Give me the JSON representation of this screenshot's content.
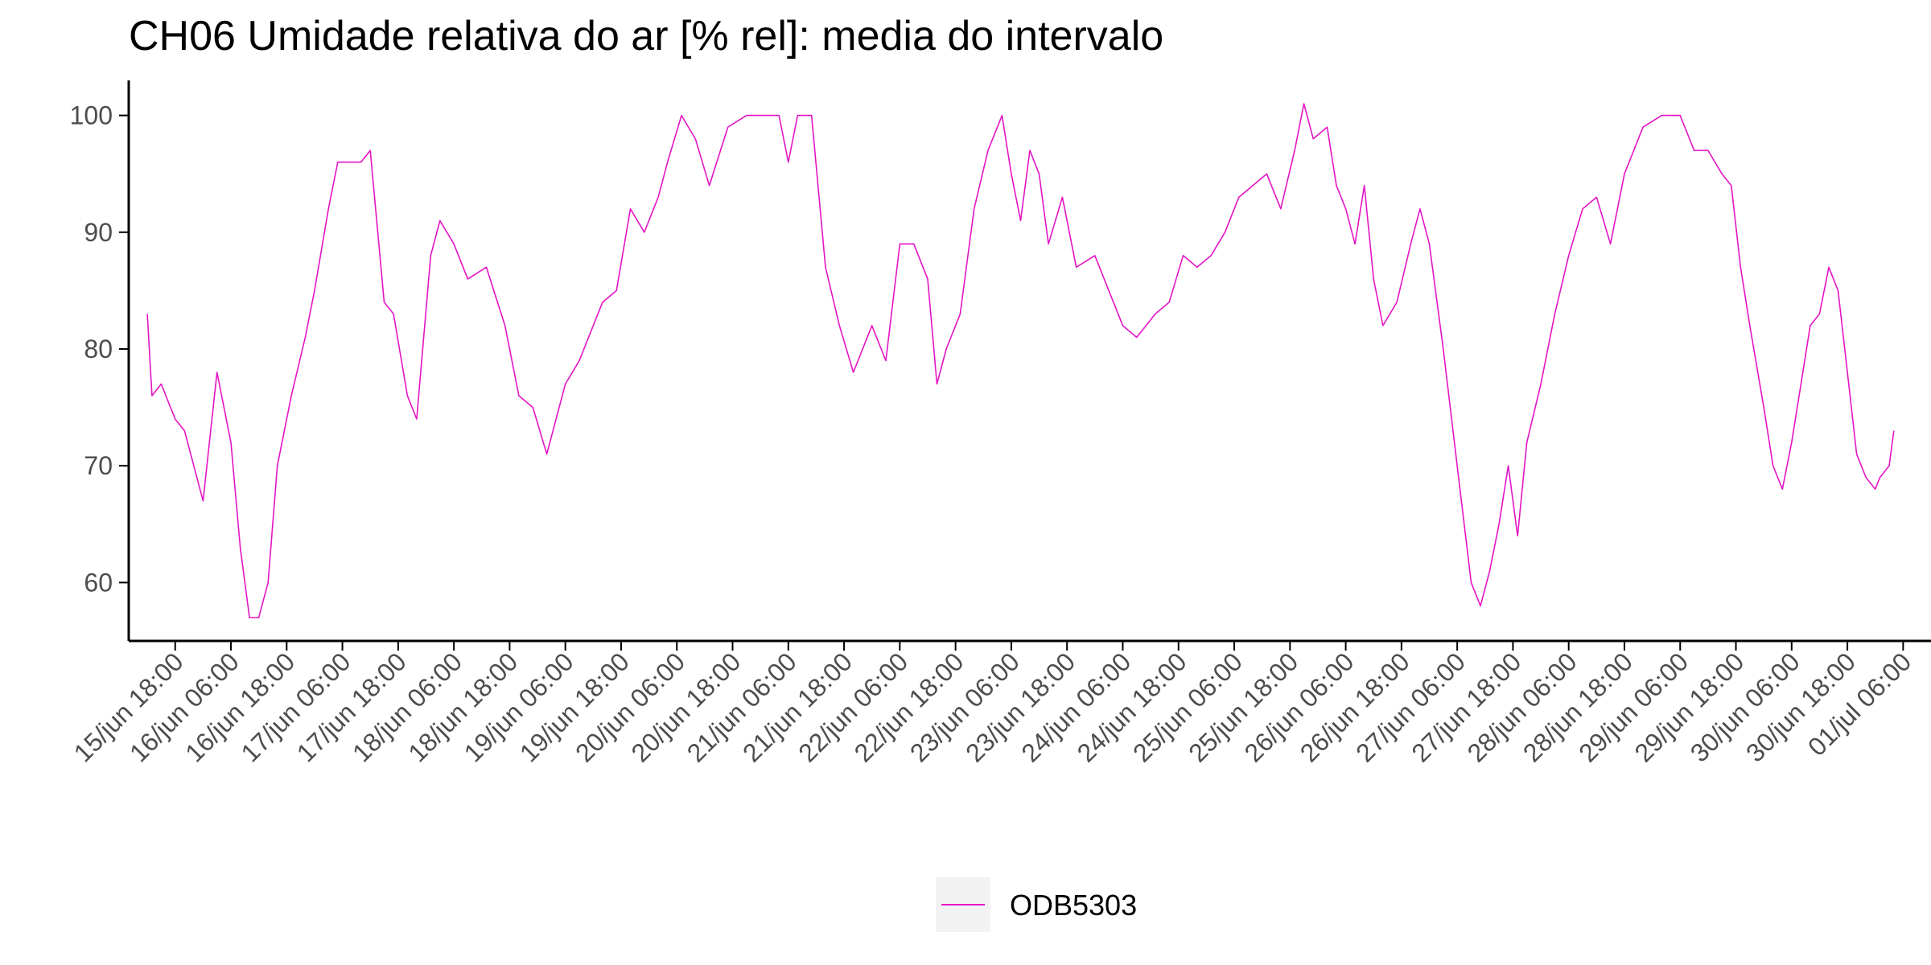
{
  "colors": {
    "series": "#e415c5",
    "axis": "#000000",
    "tick_text": "#4d4d4d",
    "legend_key_bg": "#f2f2f2"
  },
  "chart_data": {
    "type": "line",
    "title": "CH06 Umidade relativa do ar [% rel]: media do intervalo",
    "xlabel": "",
    "ylabel": "",
    "ylim": [
      55,
      103
    ],
    "xlim": [
      "2024-06-15T08:00",
      "2024-07-01T12:00"
    ],
    "x_tick_format": "dd/mmm HH:MM",
    "y_ticks": [
      60,
      70,
      80,
      90,
      100
    ],
    "x_tick_labels": [
      "15/jun 18:00",
      "16/jun 06:00",
      "16/jun 18:00",
      "17/jun 06:00",
      "17/jun 18:00",
      "18/jun 06:00",
      "18/jun 18:00",
      "19/jun 06:00",
      "19/jun 18:00",
      "20/jun 06:00",
      "20/jun 18:00",
      "21/jun 06:00",
      "21/jun 18:00",
      "22/jun 06:00",
      "22/jun 18:00",
      "23/jun 06:00",
      "23/jun 18:00",
      "24/jun 06:00",
      "24/jun 18:00",
      "25/jun 06:00",
      "25/jun 18:00",
      "26/jun 06:00",
      "26/jun 18:00",
      "27/jun 06:00",
      "27/jun 18:00",
      "28/jun 06:00",
      "28/jun 18:00",
      "29/jun 06:00",
      "29/jun 18:00",
      "30/jun 06:00",
      "30/jun 18:00",
      "01/jul 06:00"
    ],
    "legend": {
      "position": "bottom",
      "entries": [
        "ODB5303"
      ]
    },
    "grid": false,
    "series": [
      {
        "name": "ODB5303",
        "points": [
          [
            "2024-06-15T12:00",
            83
          ],
          [
            "2024-06-15T13:00",
            76
          ],
          [
            "2024-06-15T15:00",
            77
          ],
          [
            "2024-06-15T18:00",
            74
          ],
          [
            "2024-06-15T20:00",
            73
          ],
          [
            "2024-06-16T00:00",
            67
          ],
          [
            "2024-06-16T03:00",
            78
          ],
          [
            "2024-06-16T06:00",
            72
          ],
          [
            "2024-06-16T08:00",
            63
          ],
          [
            "2024-06-16T10:00",
            57
          ],
          [
            "2024-06-16T12:00",
            57
          ],
          [
            "2024-06-16T14:00",
            60
          ],
          [
            "2024-06-16T16:00",
            70
          ],
          [
            "2024-06-16T19:00",
            76
          ],
          [
            "2024-06-16T22:00",
            81
          ],
          [
            "2024-06-17T00:00",
            85
          ],
          [
            "2024-06-17T03:00",
            92
          ],
          [
            "2024-06-17T05:00",
            96
          ],
          [
            "2024-06-17T07:00",
            96
          ],
          [
            "2024-06-17T10:00",
            96
          ],
          [
            "2024-06-17T12:00",
            97
          ],
          [
            "2024-06-17T15:00",
            84
          ],
          [
            "2024-06-17T17:00",
            83
          ],
          [
            "2024-06-17T20:00",
            76
          ],
          [
            "2024-06-17T22:00",
            74
          ],
          [
            "2024-06-18T01:00",
            88
          ],
          [
            "2024-06-18T03:00",
            91
          ],
          [
            "2024-06-18T06:00",
            89
          ],
          [
            "2024-06-18T09:00",
            86
          ],
          [
            "2024-06-18T13:00",
            87
          ],
          [
            "2024-06-18T17:00",
            82
          ],
          [
            "2024-06-18T20:00",
            76
          ],
          [
            "2024-06-18T23:00",
            75
          ],
          [
            "2024-06-19T02:00",
            71
          ],
          [
            "2024-06-19T06:00",
            77
          ],
          [
            "2024-06-19T09:00",
            79
          ],
          [
            "2024-06-19T12:00",
            82
          ],
          [
            "2024-06-19T14:00",
            84
          ],
          [
            "2024-06-19T17:00",
            85
          ],
          [
            "2024-06-19T20:00",
            92
          ],
          [
            "2024-06-19T23:00",
            90
          ],
          [
            "2024-06-20T02:00",
            93
          ],
          [
            "2024-06-20T04:00",
            96
          ],
          [
            "2024-06-20T07:00",
            100
          ],
          [
            "2024-06-20T10:00",
            98
          ],
          [
            "2024-06-20T13:00",
            94
          ],
          [
            "2024-06-20T17:00",
            99
          ],
          [
            "2024-06-20T21:00",
            100
          ],
          [
            "2024-06-21T02:00",
            100
          ],
          [
            "2024-06-21T04:00",
            100
          ],
          [
            "2024-06-21T06:00",
            96
          ],
          [
            "2024-06-21T08:00",
            100
          ],
          [
            "2024-06-21T11:00",
            100
          ],
          [
            "2024-06-21T14:00",
            87
          ],
          [
            "2024-06-21T17:00",
            82
          ],
          [
            "2024-06-21T20:00",
            78
          ],
          [
            "2024-06-22T00:00",
            82
          ],
          [
            "2024-06-22T03:00",
            79
          ],
          [
            "2024-06-22T06:00",
            89
          ],
          [
            "2024-06-22T09:00",
            89
          ],
          [
            "2024-06-22T12:00",
            86
          ],
          [
            "2024-06-22T14:00",
            77
          ],
          [
            "2024-06-22T16:00",
            80
          ],
          [
            "2024-06-22T19:00",
            83
          ],
          [
            "2024-06-22T22:00",
            92
          ],
          [
            "2024-06-23T01:00",
            97
          ],
          [
            "2024-06-23T04:00",
            100
          ],
          [
            "2024-06-23T06:00",
            95
          ],
          [
            "2024-06-23T08:00",
            91
          ],
          [
            "2024-06-23T10:00",
            97
          ],
          [
            "2024-06-23T12:00",
            95
          ],
          [
            "2024-06-23T14:00",
            89
          ],
          [
            "2024-06-23T17:00",
            93
          ],
          [
            "2024-06-23T20:00",
            87
          ],
          [
            "2024-06-24T00:00",
            88
          ],
          [
            "2024-06-24T03:00",
            85
          ],
          [
            "2024-06-24T06:00",
            82
          ],
          [
            "2024-06-24T09:00",
            81
          ],
          [
            "2024-06-24T13:00",
            83
          ],
          [
            "2024-06-24T16:00",
            84
          ],
          [
            "2024-06-24T19:00",
            88
          ],
          [
            "2024-06-24T22:00",
            87
          ],
          [
            "2024-06-25T01:00",
            88
          ],
          [
            "2024-06-25T04:00",
            90
          ],
          [
            "2024-06-25T07:00",
            93
          ],
          [
            "2024-06-25T10:00",
            94
          ],
          [
            "2024-06-25T13:00",
            95
          ],
          [
            "2024-06-25T16:00",
            92
          ],
          [
            "2024-06-25T19:00",
            97
          ],
          [
            "2024-06-25T21:00",
            101
          ],
          [
            "2024-06-25T23:00",
            98
          ],
          [
            "2024-06-26T02:00",
            99
          ],
          [
            "2024-06-26T04:00",
            94
          ],
          [
            "2024-06-26T06:00",
            92
          ],
          [
            "2024-06-26T08:00",
            89
          ],
          [
            "2024-06-26T10:00",
            94
          ],
          [
            "2024-06-26T12:00",
            86
          ],
          [
            "2024-06-26T14:00",
            82
          ],
          [
            "2024-06-26T17:00",
            84
          ],
          [
            "2024-06-26T20:00",
            89
          ],
          [
            "2024-06-26T22:00",
            92
          ],
          [
            "2024-06-27T00:00",
            89
          ],
          [
            "2024-06-27T03:00",
            80
          ],
          [
            "2024-06-27T06:00",
            70
          ],
          [
            "2024-06-27T09:00",
            60
          ],
          [
            "2024-06-27T11:00",
            58
          ],
          [
            "2024-06-27T13:00",
            61
          ],
          [
            "2024-06-27T15:00",
            65
          ],
          [
            "2024-06-27T17:00",
            70
          ],
          [
            "2024-06-27T19:00",
            64
          ],
          [
            "2024-06-27T21:00",
            72
          ],
          [
            "2024-06-28T00:00",
            77
          ],
          [
            "2024-06-28T03:00",
            83
          ],
          [
            "2024-06-28T06:00",
            88
          ],
          [
            "2024-06-28T09:00",
            92
          ],
          [
            "2024-06-28T12:00",
            93
          ],
          [
            "2024-06-28T15:00",
            89
          ],
          [
            "2024-06-28T18:00",
            95
          ],
          [
            "2024-06-28T22:00",
            99
          ],
          [
            "2024-06-29T02:00",
            100
          ],
          [
            "2024-06-29T06:00",
            100
          ],
          [
            "2024-06-29T09:00",
            97
          ],
          [
            "2024-06-29T12:00",
            97
          ],
          [
            "2024-06-29T15:00",
            95
          ],
          [
            "2024-06-29T17:00",
            94
          ],
          [
            "2024-06-29T19:00",
            87
          ],
          [
            "2024-06-29T21:00",
            82
          ],
          [
            "2024-06-30T00:00",
            75
          ],
          [
            "2024-06-30T02:00",
            70
          ],
          [
            "2024-06-30T04:00",
            68
          ],
          [
            "2024-06-30T06:00",
            72
          ],
          [
            "2024-06-30T08:00",
            77
          ],
          [
            "2024-06-30T10:00",
            82
          ],
          [
            "2024-06-30T12:00",
            83
          ],
          [
            "2024-06-30T14:00",
            87
          ],
          [
            "2024-06-30T16:00",
            85
          ],
          [
            "2024-06-30T18:00",
            78
          ],
          [
            "2024-06-30T20:00",
            71
          ],
          [
            "2024-06-30T22:00",
            69
          ],
          [
            "2024-07-01T00:00",
            68
          ],
          [
            "2024-07-01T01:00",
            69
          ],
          [
            "2024-07-01T03:00",
            70
          ],
          [
            "2024-07-01T04:00",
            73
          ]
        ]
      }
    ]
  }
}
